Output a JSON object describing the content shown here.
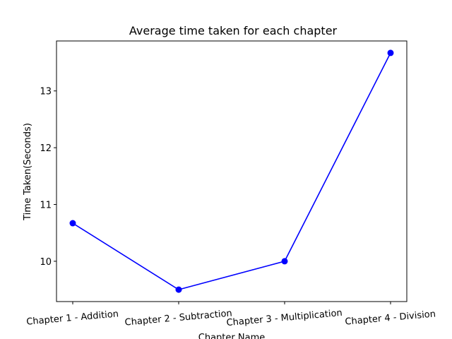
{
  "chart_data": {
    "type": "line",
    "title": "Average time taken for each chapter",
    "xlabel": "Chapter Name",
    "ylabel": "Time Taken(Seconds)",
    "categories": [
      "Chapter 1 - Addition",
      "Chapter 2 - Subtraction",
      "Chapter 3 - Multiplication",
      "Chapter 4 - Division"
    ],
    "series": [
      {
        "values": [
          10.67,
          9.5,
          10.0,
          13.67
        ],
        "color": "#0000ff",
        "marker": "circle"
      }
    ],
    "ylim": [
      9.29,
      13.88
    ],
    "yticks": [
      10,
      11,
      12,
      13
    ],
    "grid": false,
    "x_tick_rotation": "slight (about 5 degrees)"
  }
}
